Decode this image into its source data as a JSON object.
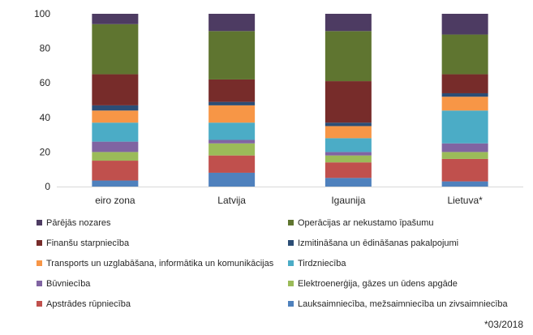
{
  "chart_data": {
    "type": "bar",
    "stacked": true,
    "title": "",
    "xlabel": "",
    "ylabel": "",
    "ylim": [
      0,
      100
    ],
    "yticks": [
      0,
      20,
      40,
      60,
      80,
      100
    ],
    "grid": false,
    "legend_position": "bottom",
    "categories": [
      "eiro zona",
      "Latvija",
      "Igaunija",
      "Lietuva*"
    ],
    "series": [
      {
        "name": "Lauksaimniecība, mežsaimniecība un zivsaimniecība",
        "color": "#4f81bd",
        "values": [
          3.5,
          8,
          5,
          3
        ]
      },
      {
        "name": "Apstrādes rūpniecība",
        "color": "#c0504d",
        "values": [
          11.5,
          10,
          9,
          13
        ]
      },
      {
        "name": "Elektroenerģija, gāzes un ūdens apgāde",
        "color": "#9bbb59",
        "values": [
          5,
          7,
          4,
          4
        ]
      },
      {
        "name": "Būvniecība",
        "color": "#8064a2",
        "values": [
          6,
          2,
          2,
          5
        ]
      },
      {
        "name": "Tirdzniecība",
        "color": "#4bacc6",
        "values": [
          11,
          10,
          8,
          19
        ]
      },
      {
        "name": "Transports un uzglabāšana, informātika un komunikācijas",
        "color": "#f79646",
        "values": [
          7,
          10,
          7,
          8
        ]
      },
      {
        "name": "Izmitināšana un ēdināšanas pakalpojumi",
        "color": "#2c4d75",
        "values": [
          3,
          2,
          2,
          2
        ]
      },
      {
        "name": "Finanšu starpniecība",
        "color": "#772c2a",
        "values": [
          18,
          13,
          24,
          11
        ]
      },
      {
        "name": "Operācijas ar nekustamo īpašumu",
        "color": "#5f7530",
        "values": [
          29,
          28,
          29,
          23
        ]
      },
      {
        "name": "Pārējās nozares",
        "color": "#4d3b62",
        "values": [
          6,
          10,
          10,
          12
        ]
      }
    ],
    "legend_order": [
      "Pārējās nozares",
      "Operācijas ar nekustamo īpašumu",
      "Finanšu starpniecība",
      "Izmitināšana un ēdināšanas pakalpojumi",
      "Transports un uzglabāšana, informātika un komunikācijas",
      "Tirdzniecība",
      "Būvniecība",
      "Elektroenerģija, gāzes un ūdens apgāde",
      "Apstrādes rūpniecība",
      "Lauksaimniecība, mežsaimniecība un zivsaimniecība"
    ]
  },
  "note": "*03/2018"
}
